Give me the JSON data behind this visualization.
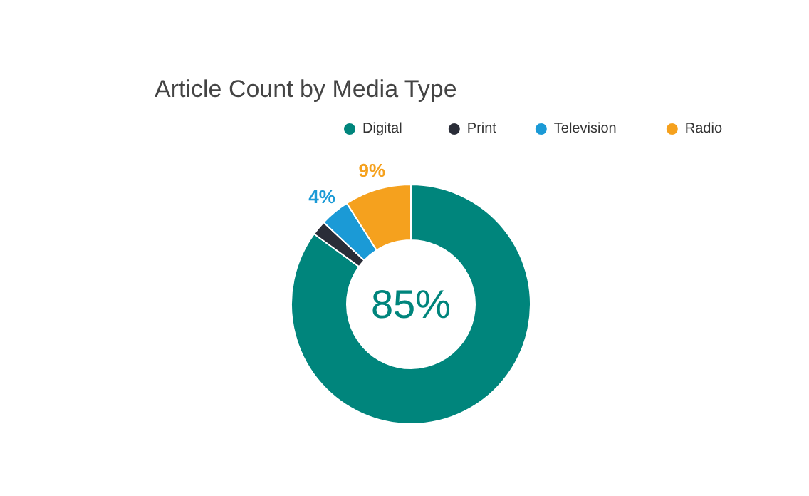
{
  "chart_data": {
    "type": "donut",
    "title": "Article Count by Media Type",
    "categories": [
      "Digital",
      "Print",
      "Television",
      "Radio"
    ],
    "values": [
      85,
      2,
      4,
      9
    ],
    "colors": [
      "#00857c",
      "#2a2d38",
      "#1b9ad6",
      "#f5a11e"
    ],
    "value_labels": [
      "85%",
      null,
      "4%",
      "9%"
    ],
    "legend": "top"
  }
}
